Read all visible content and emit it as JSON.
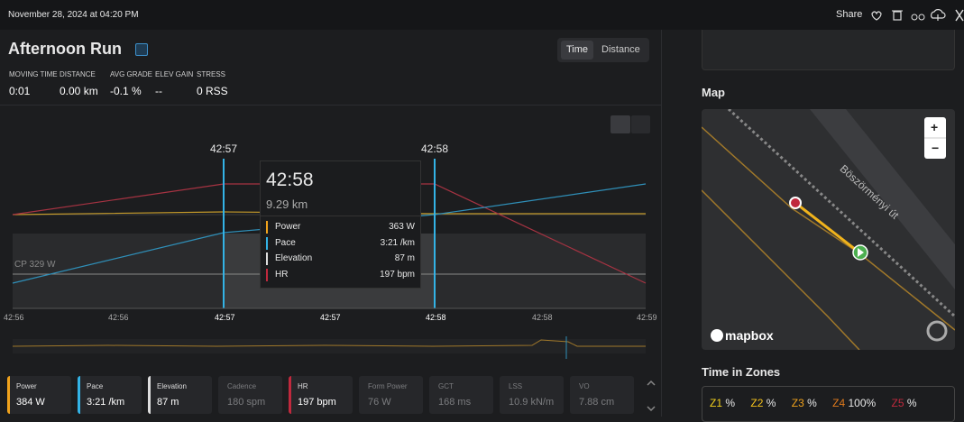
{
  "header": {
    "date": "November 28, 2024 at 04:20 PM",
    "share": "Share"
  },
  "activity": {
    "title": "Afternoon Run",
    "toggle": [
      "Time",
      "Distance"
    ],
    "stats": [
      {
        "label": "MOVING TIME",
        "value": "0:01"
      },
      {
        "label": "DISTANCE",
        "value": "0.00 km"
      },
      {
        "label": "AVG GRADE",
        "value": "-0.1 %"
      },
      {
        "label": "ELEV GAIN",
        "value": "--"
      },
      {
        "label": "STRESS",
        "value": "0 RSS"
      }
    ]
  },
  "chart": {
    "markers": [
      "42:57",
      "42:58"
    ],
    "cp_label": "CP 329 W",
    "x_labels": [
      "42:56",
      "42:56",
      "42:57",
      "42:57",
      "42:58",
      "42:58",
      "42:59"
    ],
    "tooltip": {
      "time": "42:58",
      "distance": "9.29 km",
      "rows": [
        {
          "name": "Power",
          "value": "363 W"
        },
        {
          "name": "Pace",
          "value": "3:21 /km"
        },
        {
          "name": "Elevation",
          "value": "87 m"
        },
        {
          "name": "HR",
          "value": "197 bpm"
        }
      ]
    }
  },
  "metrics": [
    {
      "name": "Power",
      "value": "384 W"
    },
    {
      "name": "Pace",
      "value": "3:21 /km"
    },
    {
      "name": "Elevation",
      "value": "87 m"
    },
    {
      "name": "Cadence",
      "value": "180 spm"
    },
    {
      "name": "HR",
      "value": "197 bpm"
    },
    {
      "name": "Form Power",
      "value": "76 W"
    },
    {
      "name": "GCT",
      "value": "168 ms"
    },
    {
      "name": "LSS",
      "value": "10.9 kN/m"
    },
    {
      "name": "VO",
      "value": "7.88 cm"
    }
  ],
  "map": {
    "title": "Map",
    "street": "Böszörményi út",
    "logo": "mapbox",
    "zoom_in": "+",
    "zoom_out": "−"
  },
  "zones": {
    "title": "Time in Zones",
    "items": [
      {
        "name": "Z1",
        "value": "%"
      },
      {
        "name": "Z2",
        "value": "%"
      },
      {
        "name": "Z3",
        "value": "%"
      },
      {
        "name": "Z4",
        "value": "100%"
      },
      {
        "name": "Z5",
        "value": "%"
      }
    ]
  }
}
